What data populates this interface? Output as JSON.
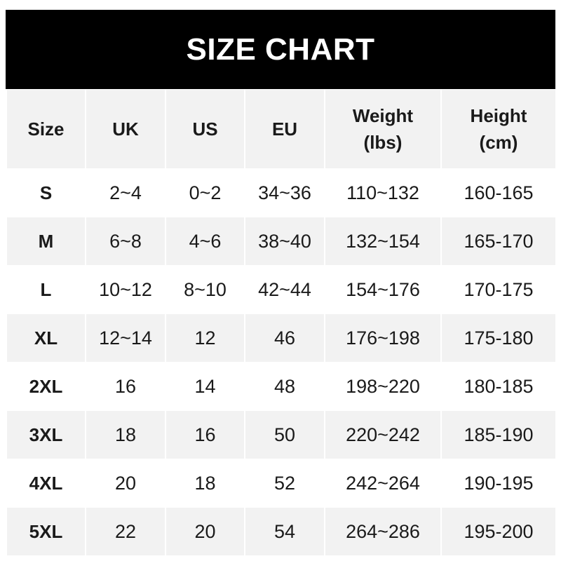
{
  "title": "SIZE CHART",
  "headers": [
    "Size",
    "UK",
    "US",
    "EU",
    "Weight\n(lbs)",
    "Height\n(cm)"
  ],
  "header_lines": [
    [
      "Size"
    ],
    [
      "UK"
    ],
    [
      "US"
    ],
    [
      "EU"
    ],
    [
      "Weight",
      "(lbs)"
    ],
    [
      "Height",
      "(cm)"
    ]
  ],
  "rows": [
    [
      "S",
      "2~4",
      "0~2",
      "34~36",
      "110~132",
      "160-165"
    ],
    [
      "M",
      "6~8",
      "4~6",
      "38~40",
      "132~154",
      "165-170"
    ],
    [
      "L",
      "10~12",
      "8~10",
      "42~44",
      "154~176",
      "170-175"
    ],
    [
      "XL",
      "12~14",
      "12",
      "46",
      "176~198",
      "175-180"
    ],
    [
      "2XL",
      "16",
      "14",
      "48",
      "198~220",
      "180-185"
    ],
    [
      "3XL",
      "18",
      "16",
      "50",
      "220~242",
      "185-190"
    ],
    [
      "4XL",
      "20",
      "18",
      "52",
      "242~264",
      "190-195"
    ],
    [
      "5XL",
      "22",
      "20",
      "54",
      "264~286",
      "195-200"
    ]
  ],
  "colors": {
    "banner": "#000000",
    "banner_text": "#ffffff",
    "stripe": "#f2f2f2"
  }
}
